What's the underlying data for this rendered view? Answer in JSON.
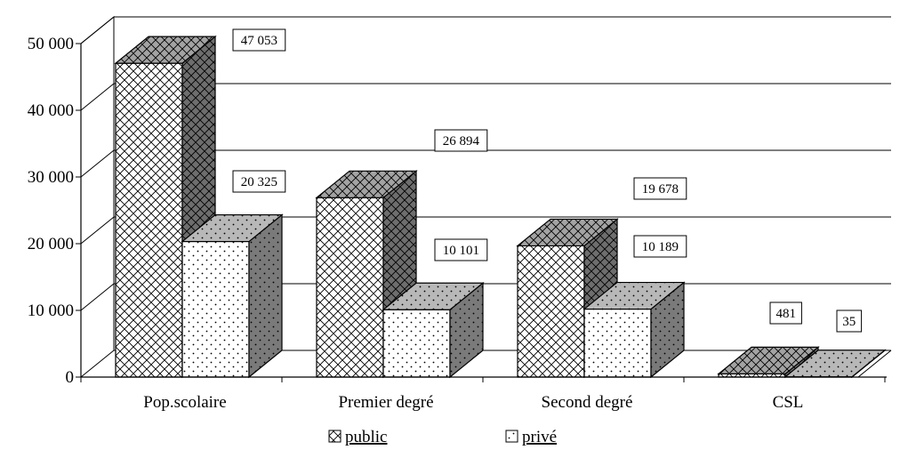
{
  "chart_data": {
    "type": "bar",
    "title": "",
    "xlabel": "",
    "ylabel": "",
    "ylim": [
      0,
      50000
    ],
    "yticks": [
      "0",
      "10 000",
      "20 000",
      "30 000",
      "40 000",
      "50 000"
    ],
    "categories": [
      "Pop.scolaire",
      "Premier degré",
      "Second degré",
      "CSL"
    ],
    "series": [
      {
        "name": "public",
        "values": [
          47053,
          26894,
          19678,
          481
        ],
        "labels": [
          "47 053",
          "26 894",
          "19 678",
          "481"
        ],
        "pattern": "crosshatch"
      },
      {
        "name": "privé",
        "values": [
          20325,
          10101,
          10189,
          35
        ],
        "labels": [
          "20 325",
          "10 101",
          "10 189",
          "35"
        ],
        "pattern": "dots"
      }
    ],
    "grid": true,
    "legend_position": "bottom",
    "style": "3d-clustered-column"
  }
}
